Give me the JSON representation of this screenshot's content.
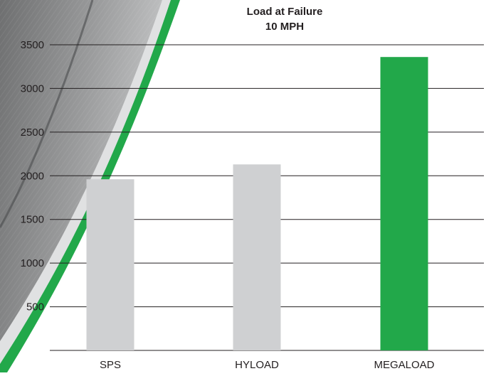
{
  "chart_data": {
    "type": "bar",
    "title": "Load at Failure",
    "subtitle": "10 MPH",
    "categories": [
      "SPS",
      "HYLOAD",
      "MEGALOAD"
    ],
    "values": [
      1960,
      2130,
      3360
    ],
    "bar_colors": [
      "#cfd0d2",
      "#cfd0d2",
      "#22a84a"
    ],
    "ylim": [
      0,
      3500
    ],
    "yticks": [
      500,
      1000,
      1500,
      2000,
      2500,
      3000,
      3500
    ],
    "grid": true,
    "legend": "none",
    "xlabel": "",
    "ylabel": ""
  },
  "colors": {
    "accent": "#22a84a",
    "neutral_bar": "#cfd0d2",
    "gridline": "#231f20",
    "text": "#231f20"
  },
  "decor": {
    "background_image": "tire-tread-arc-icon"
  }
}
